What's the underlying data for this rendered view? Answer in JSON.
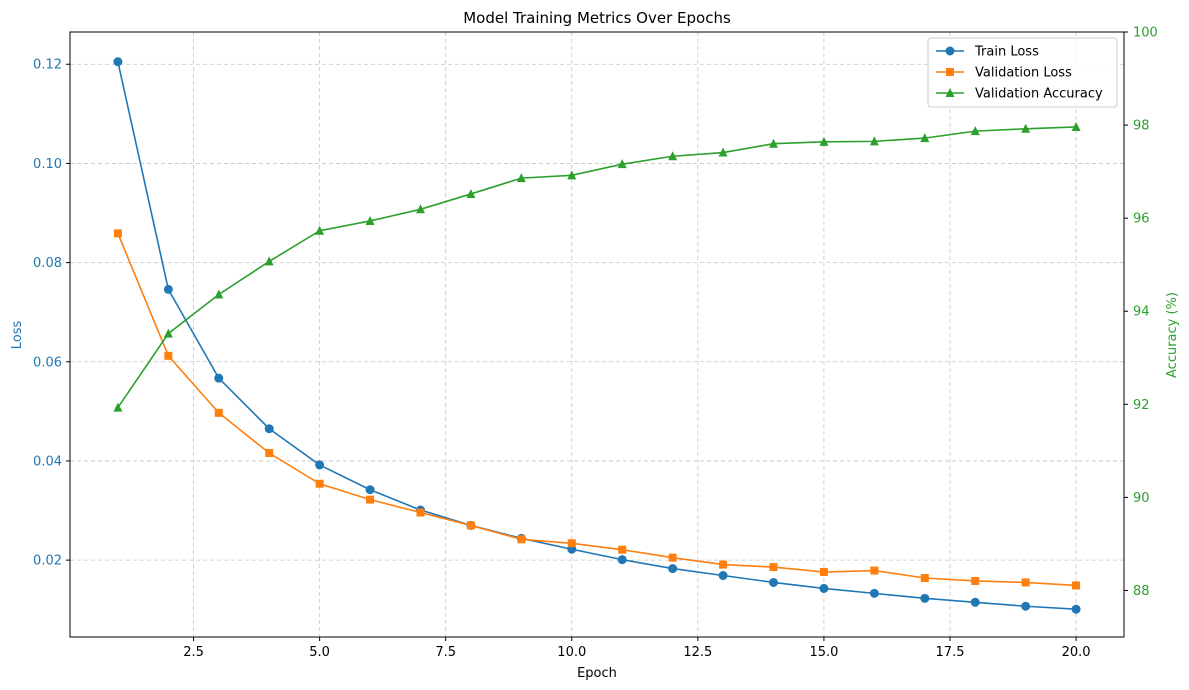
{
  "chart_data": {
    "type": "line",
    "title": "Model Training Metrics Over Epochs",
    "xlabel": "Epoch",
    "ylabel_left": "Loss",
    "ylabel_right": "Accuracy (%)",
    "x": [
      1,
      2,
      3,
      4,
      5,
      6,
      7,
      8,
      9,
      10,
      11,
      12,
      13,
      14,
      15,
      16,
      17,
      18,
      19,
      20
    ],
    "xlim": [
      0.05,
      20.95
    ],
    "ylim_left": [
      0.0045,
      0.1265
    ],
    "ylim_right": [
      87.0,
      100.0
    ],
    "x_ticks": [
      2.5,
      5.0,
      7.5,
      10.0,
      12.5,
      15.0,
      17.5,
      20.0
    ],
    "x_tick_labels": [
      "2.5",
      "5.0",
      "7.5",
      "10.0",
      "12.5",
      "15.0",
      "17.5",
      "20.0"
    ],
    "y_left_ticks": [
      0.02,
      0.04,
      0.06,
      0.08,
      0.1,
      0.12
    ],
    "y_left_tick_labels": [
      "0.02",
      "0.04",
      "0.06",
      "0.08",
      "0.10",
      "0.12"
    ],
    "y_right_ticks": [
      88,
      90,
      92,
      94,
      96,
      98,
      100
    ],
    "y_right_tick_labels": [
      "88",
      "90",
      "92",
      "94",
      "96",
      "98",
      "100"
    ],
    "grid": true,
    "legend_position": "top-right",
    "colors": {
      "train_loss": "#1f77b4",
      "val_loss": "#ff7f0e",
      "val_acc": "#2ca02c",
      "left_axis": "#1f77b4",
      "right_axis": "#2ca02c"
    },
    "series": [
      {
        "key": "train_loss",
        "name": "Train Loss",
        "axis": "left",
        "marker": "circle",
        "values": [
          0.1205,
          0.0746,
          0.0567,
          0.0465,
          0.0392,
          0.0342,
          0.0301,
          0.027,
          0.0244,
          0.0222,
          0.0201,
          0.0183,
          0.0169,
          0.0155,
          0.0143,
          0.0133,
          0.0123,
          0.0115,
          0.0107,
          0.0101
        ]
      },
      {
        "key": "val_loss",
        "name": "Validation Loss",
        "axis": "left",
        "marker": "square",
        "values": [
          0.0859,
          0.0612,
          0.0497,
          0.0416,
          0.0354,
          0.0322,
          0.0296,
          0.027,
          0.0242,
          0.0234,
          0.0221,
          0.0205,
          0.0191,
          0.0186,
          0.0176,
          0.0179,
          0.0164,
          0.0158,
          0.0155,
          0.0149
        ]
      },
      {
        "key": "val_acc",
        "name": "Validation Accuracy",
        "axis": "right",
        "marker": "triangle",
        "values": [
          91.93,
          93.52,
          94.36,
          95.07,
          95.73,
          95.94,
          96.19,
          96.52,
          96.86,
          96.92,
          97.16,
          97.33,
          97.41,
          97.6,
          97.64,
          97.65,
          97.72,
          97.87,
          97.92,
          97.96
        ]
      }
    ]
  }
}
